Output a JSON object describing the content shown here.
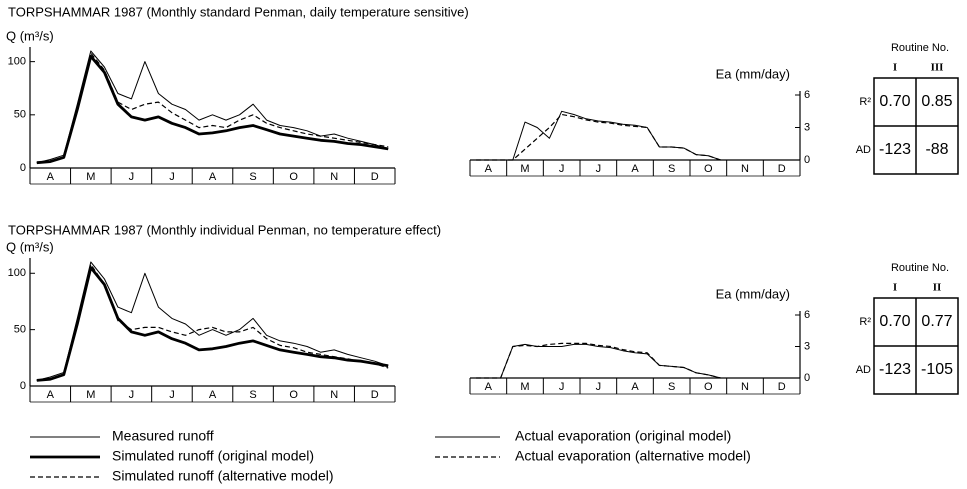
{
  "chart_data": [
    {
      "type": "line",
      "title": "TORPSHAMMAR 1987  (Monthly standard Penman, daily temperature sensitive)",
      "y_label": "Q (m³/s)",
      "categories": [
        null,
        "A",
        null,
        null,
        "M",
        null,
        null,
        "J",
        null,
        null,
        "J",
        null,
        null,
        "A",
        null,
        null,
        "S",
        null,
        null,
        "O",
        null,
        null,
        "N",
        null,
        null,
        "D",
        null
      ],
      "ylim": [
        0,
        110
      ],
      "yticks": [
        0,
        50,
        100
      ],
      "y_axis_side": "left",
      "series": [
        {
          "name": "Measured runoff",
          "color": "#000",
          "style": "solid",
          "values": [
            5,
            8,
            12,
            60,
            110,
            95,
            70,
            65,
            100,
            70,
            60,
            55,
            45,
            50,
            45,
            50,
            60,
            45,
            40,
            38,
            35,
            30,
            32,
            28,
            25,
            22,
            18
          ]
        },
        {
          "name": "Simulated runoff (original model)",
          "color": "#000",
          "style": "bold",
          "values": [
            5,
            6,
            10,
            55,
            105,
            90,
            60,
            48,
            45,
            48,
            42,
            38,
            32,
            33,
            35,
            38,
            40,
            36,
            32,
            30,
            28,
            26,
            25,
            23,
            22,
            20,
            18
          ]
        },
        {
          "name": "Simulated runoff (alternative model)",
          "color": "#000",
          "style": "dashed",
          "values": [
            5,
            6,
            10,
            55,
            108,
            92,
            62,
            55,
            60,
            62,
            52,
            45,
            38,
            40,
            38,
            45,
            50,
            42,
            38,
            35,
            32,
            30,
            28,
            26,
            24,
            22,
            20
          ]
        }
      ]
    },
    {
      "type": "line",
      "y_label": "Ea (mm/day)",
      "categories": [
        null,
        "A",
        null,
        null,
        "M",
        null,
        null,
        "J",
        null,
        null,
        "J",
        null,
        null,
        "A",
        null,
        null,
        "S",
        null,
        null,
        "O",
        null,
        null,
        "N",
        null,
        null,
        "D",
        null
      ],
      "ylim": [
        0,
        6
      ],
      "yticks": [
        0,
        3,
        6
      ],
      "y_axis_side": "right",
      "series": [
        {
          "name": "Actual evaporation (original  model)",
          "color": "#000",
          "style": "solid",
          "values": [
            0,
            0,
            0,
            0,
            3.5,
            3,
            2,
            4.5,
            4.2,
            3.8,
            3.6,
            3.5,
            3.3,
            3.2,
            3,
            1.2,
            1.2,
            1.1,
            0.5,
            0.4,
            0,
            null,
            null,
            null,
            null,
            null,
            null
          ]
        },
        {
          "name": "Actual evaporation (alternative model)",
          "color": "#000",
          "style": "dashed",
          "values": [
            0,
            0,
            0,
            0,
            1,
            2,
            3,
            4.2,
            4,
            3.7,
            3.5,
            3.4,
            3.2,
            3.1,
            3,
            1.2,
            1.2,
            1.1,
            0.5,
            0.4,
            0,
            null,
            null,
            null,
            null,
            null,
            null
          ]
        }
      ]
    },
    {
      "type": "line",
      "title": "TORPSHAMMAR 1987  (Monthly individual Penman, no temperature effect)",
      "y_label": "Q (m³/s)",
      "categories": [
        null,
        "A",
        null,
        null,
        "M",
        null,
        null,
        "J",
        null,
        null,
        "J",
        null,
        null,
        "A",
        null,
        null,
        "S",
        null,
        null,
        "O",
        null,
        null,
        "N",
        null,
        null,
        "D",
        null
      ],
      "ylim": [
        0,
        110
      ],
      "yticks": [
        0,
        50,
        100
      ],
      "y_axis_side": "left",
      "series": [
        {
          "name": "Measured runoff",
          "color": "#000",
          "style": "solid",
          "values": [
            5,
            8,
            12,
            60,
            110,
            95,
            70,
            65,
            100,
            70,
            60,
            55,
            45,
            50,
            45,
            50,
            60,
            45,
            40,
            38,
            35,
            30,
            32,
            28,
            25,
            22,
            18
          ]
        },
        {
          "name": "Simulated runoff (original model)",
          "color": "#000",
          "style": "bold",
          "values": [
            5,
            6,
            10,
            55,
            105,
            90,
            60,
            48,
            45,
            48,
            42,
            38,
            32,
            33,
            35,
            38,
            40,
            36,
            32,
            30,
            28,
            26,
            25,
            23,
            22,
            20,
            18
          ]
        },
        {
          "name": "Simulated runoff (alternative model)",
          "color": "#000",
          "style": "dashed",
          "values": [
            5,
            6,
            10,
            55,
            108,
            90,
            58,
            50,
            52,
            52,
            48,
            45,
            50,
            52,
            48,
            48,
            52,
            42,
            36,
            34,
            30,
            28,
            26,
            24,
            22,
            20,
            16
          ]
        }
      ]
    },
    {
      "type": "line",
      "y_label": "Ea (mm/day)",
      "categories": [
        null,
        "A",
        null,
        null,
        "M",
        null,
        null,
        "J",
        null,
        null,
        "J",
        null,
        null,
        "A",
        null,
        null,
        "S",
        null,
        null,
        "O",
        null,
        null,
        "N",
        null,
        null,
        "D",
        null
      ],
      "ylim": [
        0,
        6
      ],
      "yticks": [
        0,
        3,
        6
      ],
      "y_axis_side": "right",
      "series": [
        {
          "name": "Actual evaporation (original  model)",
          "color": "#000",
          "style": "solid",
          "values": [
            0,
            0,
            0,
            3,
            3.2,
            3,
            3,
            3,
            3.2,
            3.2,
            3,
            2.9,
            2.6,
            2.4,
            2.3,
            1.2,
            1.1,
            1,
            0.5,
            0.3,
            0,
            null,
            null,
            null,
            null,
            null,
            null
          ]
        },
        {
          "name": "Actual evaporation (alternative model)",
          "color": "#000",
          "style": "dashed",
          "values": [
            0,
            0,
            0,
            3,
            3.1,
            3,
            3.2,
            3.3,
            3.3,
            3.3,
            3.1,
            3,
            2.7,
            2.5,
            2.4,
            1.2,
            1.1,
            1,
            0.5,
            0.3,
            0,
            null,
            null,
            null,
            null,
            null,
            null
          ]
        }
      ]
    }
  ],
  "tables": [
    {
      "title": "Routine No.",
      "columns": [
        "I",
        "III"
      ],
      "rows": [
        [
          "R²",
          "0.70",
          "0.85"
        ],
        [
          "AD",
          "-123",
          "-88"
        ]
      ]
    },
    {
      "title": "Routine No.",
      "columns": [
        "I",
        "II"
      ],
      "rows": [
        [
          "R²",
          "0.70",
          "0.77"
        ],
        [
          "AD",
          "-123",
          "-105"
        ]
      ]
    }
  ]
}
